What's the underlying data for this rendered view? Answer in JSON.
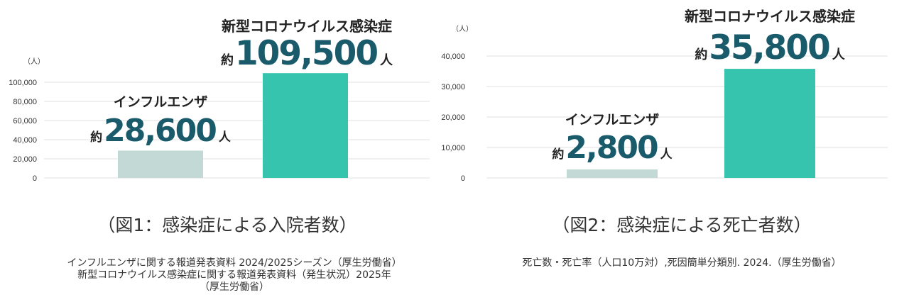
{
  "chart_data": [
    {
      "type": "bar",
      "unit_label": "（人）",
      "categories": [
        "インフルエンザ",
        "新型コロナウイルス感染症"
      ],
      "values": [
        28600,
        109500
      ],
      "value_labels": [
        {
          "prefix": "約",
          "number": "28,600",
          "suffix": "人"
        },
        {
          "prefix": "約",
          "number": "109,500",
          "suffix": "人"
        }
      ],
      "colors": [
        "#c2d9d5",
        "#36c4ae"
      ],
      "yticks": [
        "0",
        "20,000",
        "40,000",
        "60,000",
        "80,000",
        "100,000"
      ],
      "ytick_values": [
        0,
        20000,
        40000,
        60000,
        80000,
        100000
      ],
      "ylim": [
        0,
        110000
      ],
      "grid": true,
      "caption": "（図1：感染症による入院者数）",
      "source": [
        "インフルエンザに関する報道発表資料 2024/2025シーズン（厚生労働省）",
        "新型コロナウイルス感染症に関する報道発表資料（発生状況）2025年",
        "（厚生労働省）"
      ]
    },
    {
      "type": "bar",
      "unit_label": "（人）",
      "categories": [
        "インフルエンザ",
        "新型コロナウイルス感染症"
      ],
      "values": [
        2800,
        35800
      ],
      "value_labels": [
        {
          "prefix": "約",
          "number": "2,800",
          "suffix": "人"
        },
        {
          "prefix": "約",
          "number": "35,800",
          "suffix": "人"
        }
      ],
      "colors": [
        "#c2d9d5",
        "#36c4ae"
      ],
      "yticks": [
        "0",
        "10,000",
        "20,000",
        "30,000",
        "40,000"
      ],
      "ytick_values": [
        0,
        10000,
        20000,
        30000,
        40000
      ],
      "ylim": [
        0,
        40000
      ],
      "grid": true,
      "caption": "（図2：感染症による死亡者数）",
      "source": [
        "死亡数・死亡率（人口10万対）,死因簡単分類別. 2024.（厚生労働省）"
      ]
    }
  ]
}
